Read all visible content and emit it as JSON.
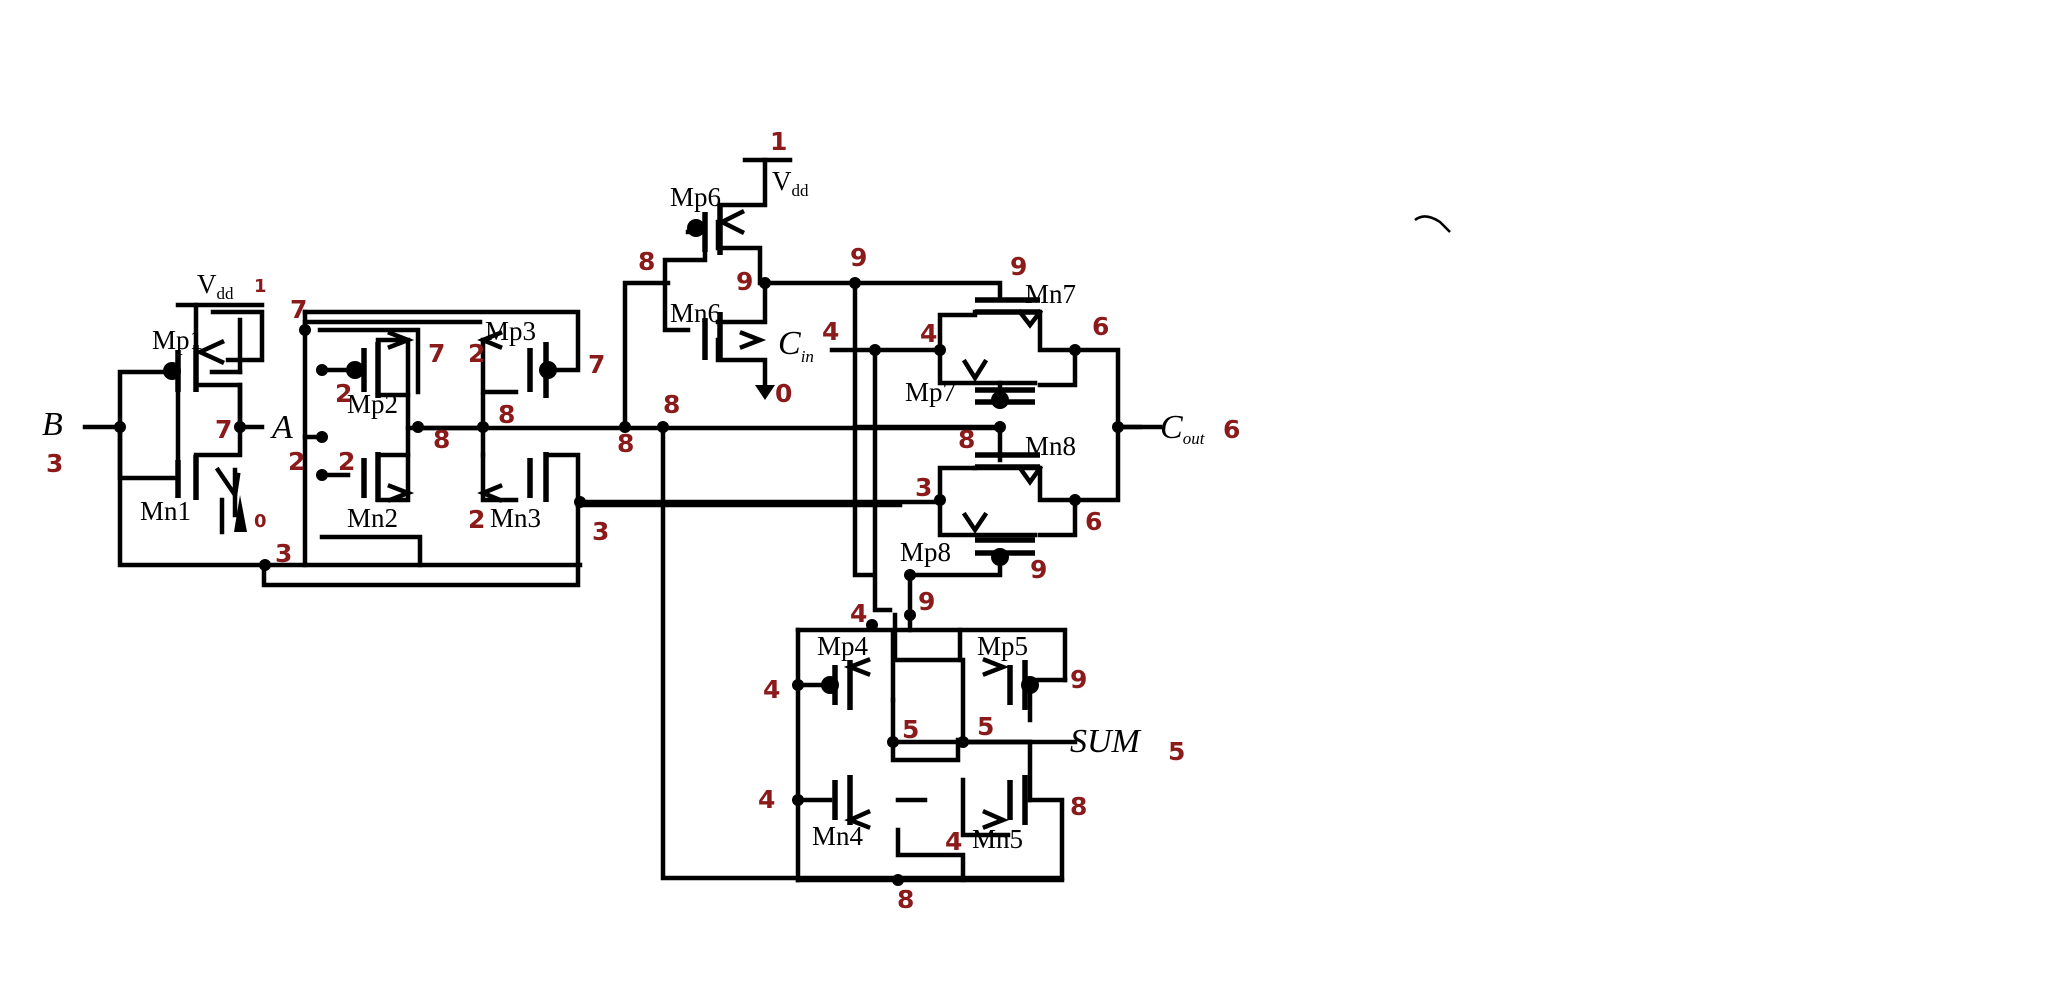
{
  "transistors": {
    "mp1": "Mp1",
    "mn1": "Mn1",
    "mp2": "Mp2",
    "mn2": "Mn2",
    "mp3": "Mp3",
    "mn3": "Mn3",
    "mp6": "Mp6",
    "mn6": "Mn6",
    "mn7": "Mn7",
    "mp7": "Mp7",
    "mn8": "Mn8",
    "mp8": "Mp8",
    "mp4": "Mp4",
    "mp5": "Mp5",
    "mn4": "Mn4",
    "mn5": "Mn5"
  },
  "signals": {
    "b": "B",
    "a": "A",
    "cin": "C",
    "cin_sub": "in",
    "cout": "C",
    "cout_sub": "out",
    "sum": "SUM",
    "vdd": "V",
    "vdd_sub": "dd"
  },
  "node_labels": {
    "n_1_vdd_left": "1",
    "n_7_top": "7",
    "n_7_mp2": "7",
    "n_2_mp3": "2",
    "n_7_mp3": "7",
    "n_2_mp2": "2",
    "n_8_mp2": "8",
    "n_8_mp3": "8",
    "n_7_mid": "7",
    "n_2_a": "2",
    "n_2_mn2": "2",
    "n_2_mn3": "2",
    "n_0_mn1": "0",
    "n_3_bot": "3",
    "n_3_mn3": "3",
    "n_3_b": "3",
    "n_1_vdd_top": "1",
    "n_8_mp6": "8",
    "n_9_mp6": "9",
    "n_9_top": "9",
    "n_0_mn6": "0",
    "n_8_bus_a": "8",
    "n_8_bus_b": "8",
    "n_9_mn7": "9",
    "n_4_cin": "4",
    "n_4_mn7": "4",
    "n_6_mn7": "6",
    "n_6_cout": "6",
    "n_8_mid": "8",
    "n_3_mn8": "3",
    "n_6_mn8": "6",
    "n_9_mp8": "9",
    "n_4_mp4top": "4",
    "n_9_mp4top": "9",
    "n_4_mp4": "4",
    "n_5_left": "5",
    "n_5_right": "5",
    "n_9_mp5": "9",
    "n_5_sum": "5",
    "n_4_mn4": "4",
    "n_4_mn5": "4",
    "n_8_mn5": "8",
    "n_8_bot": "8"
  }
}
